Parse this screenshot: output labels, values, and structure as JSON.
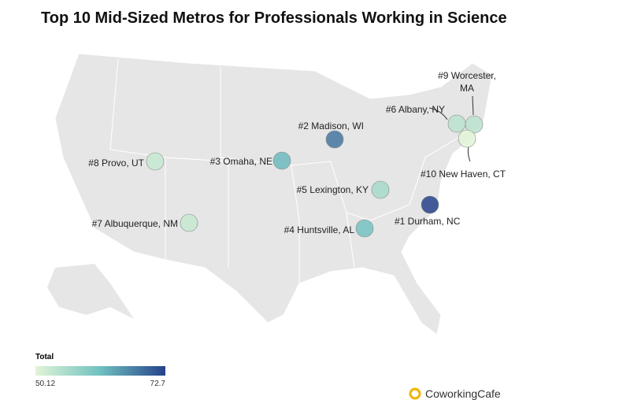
{
  "title": "Top 10 Mid-Sized Metros for Professionals Working in Science",
  "points": [
    {
      "label": "#1 Durham, NC",
      "value": 72.7
    },
    {
      "label": "#2 Madison, WI",
      "value": 68
    },
    {
      "label": "#3 Omaha, NE",
      "value": 62
    },
    {
      "label": "#4 Huntsville, AL",
      "value": 61
    },
    {
      "label": "#5 Lexington, KY",
      "value": 56
    },
    {
      "label": "#6 Albany, NY",
      "value": 54
    },
    {
      "label": "#7 Albuquerque, NM",
      "value": 53
    },
    {
      "label": "#8 Provo, UT",
      "value": 53
    },
    {
      "label": "#9 Worcester, MA",
      "value": 54
    },
    {
      "label": "#10 New Haven, CT",
      "value": 50.12
    }
  ],
  "legend": {
    "title": "Total",
    "min": 50.12,
    "max": 72.7
  },
  "brand": "CoworkingCafe"
}
